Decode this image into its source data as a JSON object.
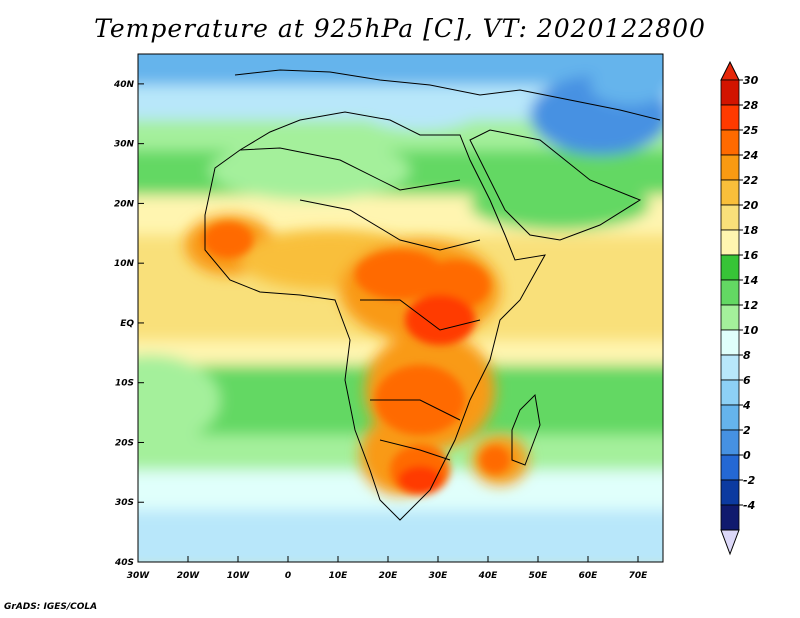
{
  "title": "Temperature at 925hPa [C], VT: 2020122800",
  "credit": "GrADS: IGES/COLA",
  "map": {
    "lon_range": [
      -30,
      75
    ],
    "lat_range": [
      -40,
      45
    ],
    "lon_ticks": [
      {
        "value": -30,
        "label": "30W"
      },
      {
        "value": -20,
        "label": "20W"
      },
      {
        "value": -10,
        "label": "10W"
      },
      {
        "value": 0,
        "label": "0"
      },
      {
        "value": 10,
        "label": "10E"
      },
      {
        "value": 20,
        "label": "20E"
      },
      {
        "value": 30,
        "label": "30E"
      },
      {
        "value": 40,
        "label": "40E"
      },
      {
        "value": 50,
        "label": "50E"
      },
      {
        "value": 60,
        "label": "60E"
      },
      {
        "value": 70,
        "label": "70E"
      }
    ],
    "lat_ticks": [
      {
        "value": 40,
        "label": "40N"
      },
      {
        "value": 30,
        "label": "30N"
      },
      {
        "value": 20,
        "label": "20N"
      },
      {
        "value": 10,
        "label": "10N"
      },
      {
        "value": 0,
        "label": "EQ"
      },
      {
        "value": -10,
        "label": "10S"
      },
      {
        "value": -20,
        "label": "20S"
      },
      {
        "value": -30,
        "label": "30S"
      },
      {
        "value": -40,
        "label": "40S"
      }
    ]
  },
  "colorbar": {
    "labels": [
      "30",
      "28",
      "25",
      "24",
      "22",
      "20",
      "18",
      "16",
      "14",
      "12",
      "10",
      "8",
      "6",
      "4",
      "2",
      "0",
      "-2",
      "-4"
    ],
    "colors": [
      "#d21400",
      "#ff3a00",
      "#ff6a00",
      "#f99a12",
      "#f9bf3a",
      "#f9e07a",
      "#fff5b0",
      "#37c437",
      "#63d863",
      "#a4f09b",
      "#e0fffb",
      "#b8e7fa",
      "#8dd0f5",
      "#65b4ec",
      "#4691e2",
      "#2468d4",
      "#0c3aa0",
      "#101a6e"
    ],
    "top_color": "#e6280a",
    "bottom_color": "#dcd8f8"
  }
}
